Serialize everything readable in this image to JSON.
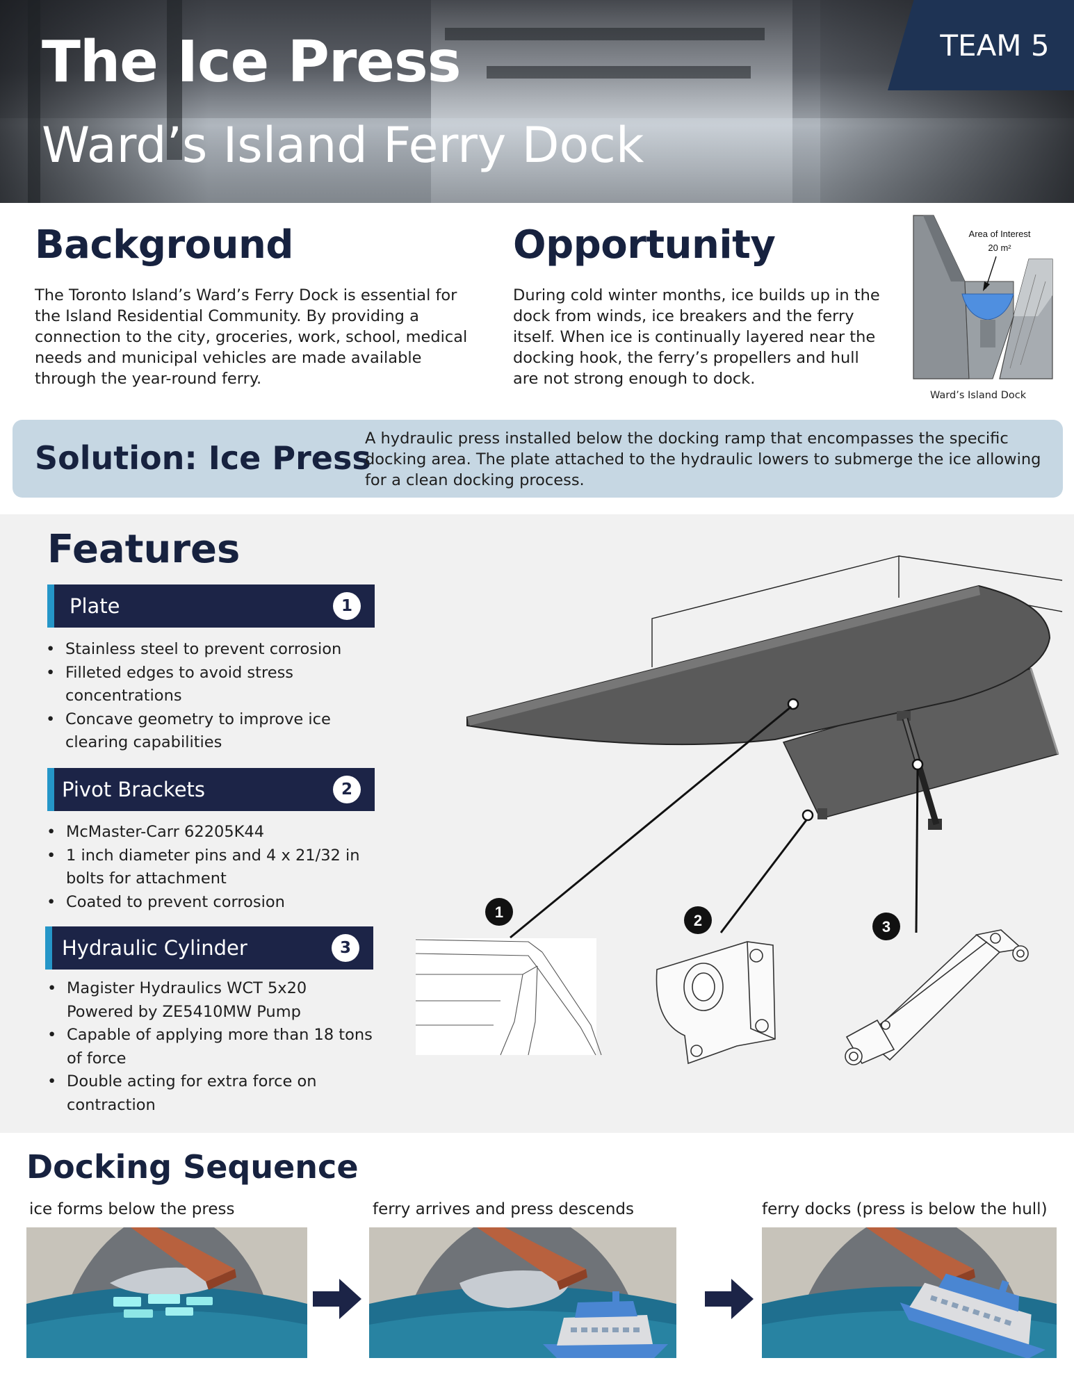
{
  "header": {
    "title": "The Ice Press",
    "subtitle": "Ward’s Island Ferry Dock",
    "team": "TEAM 5"
  },
  "background": {
    "heading": "Background",
    "text": "The Toronto Island’s Ward’s Ferry Dock is essential for the Island Residential Community. By providing a connection to the city, groceries, work, school, medical needs and municipal vehicles are made available through the year-round ferry."
  },
  "opportunity": {
    "heading": "Opportunity",
    "text": "During cold winter months, ice builds up in the dock from winds, ice breakers and the ferry itself. When ice is continually layered near the docking hook, the ferry’s propellers and hull are not strong enough to dock.",
    "figure": {
      "label_line1": "Area of Interest",
      "label_line2": "20 m²",
      "caption": "Ward’s Island Dock"
    }
  },
  "solution": {
    "heading": "Solution: Ice Press",
    "text": "A hydraulic press installed below the docking ramp that encompasses the specific docking area. The plate attached to the hydraulic lowers to submerge the ice allowing for a clean docking process."
  },
  "features": {
    "heading": "Features",
    "items": [
      {
        "title": "Plate",
        "number": "1",
        "bullets": [
          "Stainless steel to prevent corrosion",
          "Filleted edges to avoid stress concentrations",
          "Concave geometry to improve ice clearing capabilities"
        ]
      },
      {
        "title": "Pivot Brackets",
        "number": "2",
        "bullets": [
          "McMaster-Carr 62205K44",
          "1 inch diameter pins and 4 x 21/32 in bolts for attachment",
          "Coated to prevent corrosion"
        ]
      },
      {
        "title": "Hydraulic Cylinder",
        "number": "3",
        "bullets": [
          "Magister Hydraulics WCT 5x20 Powered by ZE5410MW Pump",
          "Capable of applying more than 18 tons of force",
          "Double acting for extra force on contraction"
        ]
      }
    ],
    "callouts": [
      "1",
      "2",
      "3"
    ]
  },
  "docking": {
    "heading": "Docking Sequence",
    "steps": [
      "ice forms below the press",
      "ferry arrives and press descends",
      "ferry docks (press is below the hull)"
    ]
  },
  "colors": {
    "navy": "#17223f",
    "bar": "#1c2447",
    "accent": "#2596c8",
    "solution_bg": "#c6d7e3",
    "team_bg": "#1e3354"
  }
}
